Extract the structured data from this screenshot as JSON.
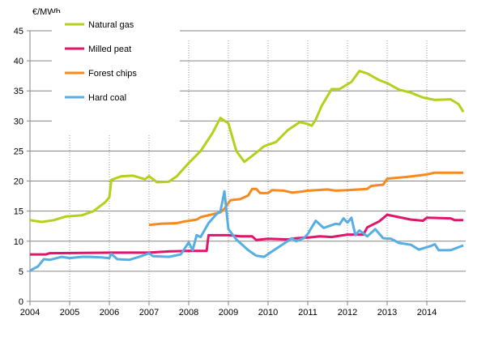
{
  "chart_data": {
    "type": "line",
    "title": "",
    "ylabel": "€/MWh",
    "xlabel": "",
    "xlim": [
      2004,
      2015
    ],
    "ylim": [
      0,
      45
    ],
    "yticks": [
      0,
      5,
      10,
      15,
      20,
      25,
      30,
      35,
      40,
      45
    ],
    "xticks": [
      "2004",
      "2005",
      "2006",
      "2007",
      "2008",
      "2009",
      "2010",
      "2011",
      "2012",
      "2013",
      "2014"
    ],
    "grid": {
      "horizontal": "solid",
      "vertical": "dotted"
    },
    "legend_placement": "top-left",
    "series": [
      {
        "name": "Natural gas",
        "color": "#b5cf1a",
        "points": [
          [
            2004,
            13.5
          ],
          [
            2004.3,
            13.2
          ],
          [
            2004.6,
            13.5
          ],
          [
            2004.9,
            14.1
          ],
          [
            2005.3,
            14.3
          ],
          [
            2005.6,
            15
          ],
          [
            2005.9,
            16.5
          ],
          [
            2006.0,
            17.3
          ],
          [
            2006.05,
            20.2
          ],
          [
            2006.3,
            20.8
          ],
          [
            2006.6,
            20.9
          ],
          [
            2006.9,
            20.3
          ],
          [
            2007.0,
            20.8
          ],
          [
            2007.2,
            19.8
          ],
          [
            2007.5,
            19.9
          ],
          [
            2007.7,
            20.8
          ],
          [
            2008.0,
            23
          ],
          [
            2008.3,
            25
          ],
          [
            2008.6,
            28
          ],
          [
            2008.8,
            30.5
          ],
          [
            2009.0,
            29.6
          ],
          [
            2009.2,
            25
          ],
          [
            2009.4,
            23.2
          ],
          [
            2009.6,
            24.2
          ],
          [
            2009.9,
            25.8
          ],
          [
            2010.2,
            26.5
          ],
          [
            2010.5,
            28.5
          ],
          [
            2010.8,
            29.8
          ],
          [
            2011.0,
            29.5
          ],
          [
            2011.1,
            29.2
          ],
          [
            2011.2,
            30.2
          ],
          [
            2011.35,
            32.5
          ],
          [
            2011.6,
            35.3
          ],
          [
            2011.8,
            35.3
          ],
          [
            2012.1,
            36.5
          ],
          [
            2012.3,
            38.3
          ],
          [
            2012.5,
            37.9
          ],
          [
            2012.8,
            36.8
          ],
          [
            2013.0,
            36.3
          ],
          [
            2013.3,
            35.2
          ],
          [
            2013.6,
            34.7
          ],
          [
            2013.9,
            33.9
          ],
          [
            2014.2,
            33.5
          ],
          [
            2014.6,
            33.6
          ],
          [
            2014.8,
            32.8
          ],
          [
            2014.92,
            31.5
          ]
        ]
      },
      {
        "name": "Milled peat",
        "color": "#e0156b",
        "points": [
          [
            2004,
            7.8
          ],
          [
            2004.4,
            7.8
          ],
          [
            2004.5,
            8.0
          ],
          [
            2006,
            8.1
          ],
          [
            2007,
            8.1
          ],
          [
            2007.5,
            8.3
          ],
          [
            2008,
            8.4
          ],
          [
            2008.45,
            8.4
          ],
          [
            2008.5,
            11.0
          ],
          [
            2009,
            11.0
          ],
          [
            2009.3,
            10.8
          ],
          [
            2009.6,
            10.8
          ],
          [
            2009.7,
            10.2
          ],
          [
            2010,
            10.4
          ],
          [
            2010.5,
            10.3
          ],
          [
            2010.7,
            10.5
          ],
          [
            2011,
            10.6
          ],
          [
            2011.3,
            10.8
          ],
          [
            2011.6,
            10.7
          ],
          [
            2012,
            11.1
          ],
          [
            2012.4,
            11.1
          ],
          [
            2012.5,
            12.3
          ],
          [
            2012.8,
            13.3
          ],
          [
            2013.0,
            14.4
          ],
          [
            2013.3,
            14.0
          ],
          [
            2013.6,
            13.6
          ],
          [
            2013.9,
            13.4
          ],
          [
            2014.0,
            13.9
          ],
          [
            2014.6,
            13.8
          ],
          [
            2014.7,
            13.5
          ],
          [
            2014.92,
            13.5
          ]
        ]
      },
      {
        "name": "Forest chips",
        "color": "#f7891f",
        "points": [
          [
            2007,
            12.7
          ],
          [
            2007.3,
            12.9
          ],
          [
            2007.7,
            13.0
          ],
          [
            2007.9,
            13.3
          ],
          [
            2008.2,
            13.6
          ],
          [
            2008.3,
            14.0
          ],
          [
            2008.8,
            14.8
          ],
          [
            2008.9,
            15.4
          ],
          [
            2009.05,
            16.8
          ],
          [
            2009.3,
            17.0
          ],
          [
            2009.5,
            17.6
          ],
          [
            2009.6,
            18.7
          ],
          [
            2009.7,
            18.7
          ],
          [
            2009.8,
            18.0
          ],
          [
            2010.0,
            18.0
          ],
          [
            2010.1,
            18.5
          ],
          [
            2010.4,
            18.4
          ],
          [
            2010.6,
            18.1
          ],
          [
            2010.8,
            18.2
          ],
          [
            2011.0,
            18.4
          ],
          [
            2011.5,
            18.6
          ],
          [
            2011.7,
            18.4
          ],
          [
            2012,
            18.5
          ],
          [
            2012.5,
            18.7
          ],
          [
            2012.6,
            19.2
          ],
          [
            2012.9,
            19.4
          ],
          [
            2013,
            20.4
          ],
          [
            2013.5,
            20.7
          ],
          [
            2014,
            21.1
          ],
          [
            2014.2,
            21.4
          ],
          [
            2014.92,
            21.4
          ]
        ]
      },
      {
        "name": "Hard coal",
        "color": "#56aee2",
        "points": [
          [
            2004,
            5.1
          ],
          [
            2004.2,
            5.8
          ],
          [
            2004.35,
            7.0
          ],
          [
            2004.5,
            6.9
          ],
          [
            2004.8,
            7.4
          ],
          [
            2005.0,
            7.2
          ],
          [
            2005.3,
            7.4
          ],
          [
            2005.5,
            7.4
          ],
          [
            2005.8,
            7.3
          ],
          [
            2006.0,
            7.2
          ],
          [
            2006.05,
            7.9
          ],
          [
            2006.2,
            7.0
          ],
          [
            2006.5,
            6.9
          ],
          [
            2006.8,
            7.5
          ],
          [
            2007.0,
            8.0
          ],
          [
            2007.1,
            7.5
          ],
          [
            2007.5,
            7.4
          ],
          [
            2007.8,
            7.8
          ],
          [
            2008.0,
            9.8
          ],
          [
            2008.1,
            8.5
          ],
          [
            2008.2,
            11.0
          ],
          [
            2008.3,
            10.7
          ],
          [
            2008.5,
            13.0
          ],
          [
            2008.7,
            14.5
          ],
          [
            2008.8,
            15.0
          ],
          [
            2008.9,
            18.3
          ],
          [
            2009.0,
            12.0
          ],
          [
            2009.2,
            10.3
          ],
          [
            2009.5,
            8.5
          ],
          [
            2009.7,
            7.6
          ],
          [
            2009.9,
            7.4
          ],
          [
            2010.1,
            8.3
          ],
          [
            2010.4,
            9.6
          ],
          [
            2010.6,
            10.5
          ],
          [
            2010.7,
            10.0
          ],
          [
            2010.9,
            10.5
          ],
          [
            2011.0,
            11.2
          ],
          [
            2011.2,
            13.4
          ],
          [
            2011.4,
            12.2
          ],
          [
            2011.7,
            12.9
          ],
          [
            2011.8,
            12.8
          ],
          [
            2011.9,
            13.8
          ],
          [
            2012.0,
            13.1
          ],
          [
            2012.1,
            13.9
          ],
          [
            2012.2,
            11.0
          ],
          [
            2012.3,
            11.8
          ],
          [
            2012.5,
            10.8
          ],
          [
            2012.7,
            12.0
          ],
          [
            2012.9,
            10.5
          ],
          [
            2013.1,
            10.4
          ],
          [
            2013.3,
            9.7
          ],
          [
            2013.6,
            9.4
          ],
          [
            2013.8,
            8.6
          ],
          [
            2014.1,
            9.2
          ],
          [
            2014.2,
            9.5
          ],
          [
            2014.3,
            8.5
          ],
          [
            2014.6,
            8.5
          ],
          [
            2014.92,
            9.3
          ]
        ]
      }
    ]
  }
}
